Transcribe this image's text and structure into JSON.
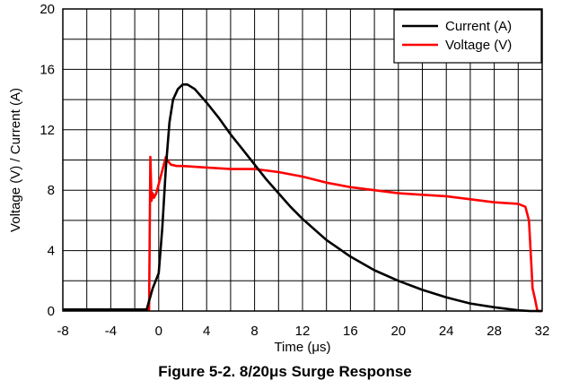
{
  "caption": "Figure 5-2. 8/20μs Surge Response",
  "chart_data": {
    "type": "line",
    "title": "",
    "xlabel": "Time (μs)",
    "ylabel": "Voltage (V) / Current (A)",
    "xlim": [
      -8,
      32
    ],
    "ylim": [
      0,
      20
    ],
    "xticks": [
      "-8",
      "-4",
      "0",
      "4",
      "8",
      "12",
      "16",
      "20",
      "24",
      "28",
      "32"
    ],
    "yticks": [
      "0",
      "4",
      "8",
      "12",
      "16",
      "20"
    ],
    "grid": true,
    "legend_position": "top-right",
    "series": [
      {
        "name": "Current (A)",
        "color": "#000000",
        "x": [
          -8,
          -1.0,
          -0.5,
          0.0,
          0.3,
          0.6,
          0.9,
          1.2,
          1.6,
          2.0,
          2.4,
          3.0,
          4.0,
          5.0,
          6.0,
          7.0,
          8.0,
          9.0,
          10.0,
          11.0,
          12.0,
          14.0,
          16.0,
          18.0,
          20.0,
          22.0,
          24.0,
          26.0,
          28.0,
          30.0,
          31.0,
          32.0
        ],
        "y": [
          0.1,
          0.1,
          1.5,
          2.5,
          5.5,
          9.5,
          12.5,
          14.0,
          14.7,
          15.0,
          15.0,
          14.7,
          13.8,
          12.8,
          11.7,
          10.7,
          9.7,
          8.7,
          7.8,
          6.9,
          6.1,
          4.7,
          3.6,
          2.7,
          2.0,
          1.4,
          0.9,
          0.5,
          0.25,
          0.05,
          0.0,
          0.0
        ]
      },
      {
        "name": "Voltage (V)",
        "color": "#ff0000",
        "x": [
          -8,
          -0.8,
          -0.7,
          -0.6,
          -0.5,
          -0.4,
          -0.2,
          0.0,
          0.2,
          0.4,
          0.6,
          0.8,
          1.0,
          1.5,
          2.0,
          4.0,
          6.0,
          8.0,
          10.0,
          12.0,
          14.0,
          16.0,
          18.0,
          20.0,
          22.0,
          24.0,
          26.0,
          28.0,
          30.0,
          30.6,
          30.9,
          31.1,
          31.2,
          31.4,
          31.6,
          32.0
        ],
        "y": [
          0.1,
          0.1,
          10.2,
          7.3,
          7.8,
          7.5,
          7.8,
          8.4,
          9.0,
          9.6,
          10.2,
          9.9,
          9.7,
          9.6,
          9.6,
          9.5,
          9.4,
          9.4,
          9.2,
          8.9,
          8.5,
          8.2,
          8.0,
          7.8,
          7.7,
          7.6,
          7.4,
          7.2,
          7.1,
          6.9,
          6.0,
          3.0,
          1.5,
          0.8,
          0.0,
          0.0
        ]
      }
    ]
  }
}
